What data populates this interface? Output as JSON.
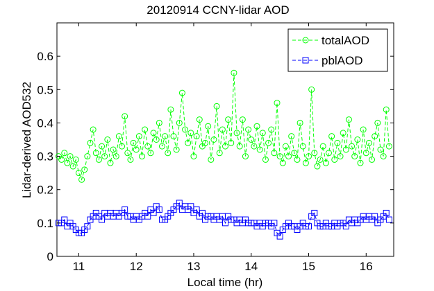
{
  "chart_data": {
    "type": "line",
    "title": "20120914 CCNY-lidar AOD",
    "xlabel": "Local time (hr)",
    "ylabel": "Lidar-derived AOD532",
    "xlim": [
      10.62,
      16.48
    ],
    "ylim": [
      0,
      0.7
    ],
    "xticks": [
      11,
      12,
      13,
      14,
      15,
      16
    ],
    "yticks": [
      0,
      0.1,
      0.2,
      0.3,
      0.4,
      0.5,
      0.6
    ],
    "xtick_labels": [
      "11",
      "12",
      "13",
      "14",
      "15",
      "16"
    ],
    "ytick_labels": [
      "0",
      "0.1",
      "0.2",
      "0.3",
      "0.4",
      "0.5",
      "0.6"
    ],
    "grid": false,
    "legend_position": "top-right",
    "series": [
      {
        "name": "totalAOD",
        "color": "#00ff00",
        "line_style": "dashed",
        "marker": "circle",
        "x": [
          10.65,
          10.7,
          10.75,
          10.8,
          10.85,
          10.9,
          10.95,
          11.0,
          11.05,
          11.1,
          11.15,
          11.2,
          11.25,
          11.3,
          11.35,
          11.4,
          11.45,
          11.5,
          11.55,
          11.6,
          11.65,
          11.7,
          11.75,
          11.8,
          11.85,
          11.9,
          11.95,
          12.0,
          12.05,
          12.1,
          12.15,
          12.2,
          12.25,
          12.3,
          12.35,
          12.4,
          12.45,
          12.5,
          12.55,
          12.6,
          12.65,
          12.7,
          12.75,
          12.8,
          12.85,
          12.9,
          12.95,
          13.0,
          13.05,
          13.1,
          13.15,
          13.2,
          13.25,
          13.3,
          13.35,
          13.4,
          13.45,
          13.5,
          13.55,
          13.6,
          13.65,
          13.7,
          13.75,
          13.8,
          13.85,
          13.9,
          13.95,
          14.0,
          14.05,
          14.1,
          14.15,
          14.2,
          14.25,
          14.3,
          14.35,
          14.4,
          14.45,
          14.5,
          14.55,
          14.6,
          14.65,
          14.7,
          14.75,
          14.8,
          14.85,
          14.9,
          14.95,
          15.0,
          15.05,
          15.1,
          15.15,
          15.2,
          15.25,
          15.3,
          15.35,
          15.4,
          15.45,
          15.5,
          15.55,
          15.6,
          15.65,
          15.7,
          15.75,
          15.8,
          15.85,
          15.9,
          15.95,
          16.0,
          16.05,
          16.1,
          16.15,
          16.2,
          16.25,
          16.3,
          16.35,
          16.4
        ],
        "values": [
          0.3,
          0.29,
          0.31,
          0.28,
          0.3,
          0.27,
          0.29,
          0.25,
          0.23,
          0.26,
          0.3,
          0.34,
          0.38,
          0.31,
          0.29,
          0.33,
          0.3,
          0.35,
          0.28,
          0.32,
          0.3,
          0.36,
          0.33,
          0.42,
          0.31,
          0.29,
          0.34,
          0.32,
          0.36,
          0.3,
          0.38,
          0.33,
          0.31,
          0.37,
          0.35,
          0.4,
          0.33,
          0.36,
          0.31,
          0.44,
          0.36,
          0.32,
          0.4,
          0.49,
          0.38,
          0.34,
          0.37,
          0.3,
          0.36,
          0.41,
          0.33,
          0.34,
          0.39,
          0.29,
          0.35,
          0.45,
          0.31,
          0.38,
          0.33,
          0.41,
          0.34,
          0.55,
          0.37,
          0.33,
          0.41,
          0.3,
          0.38,
          0.35,
          0.33,
          0.39,
          0.32,
          0.37,
          0.29,
          0.34,
          0.38,
          0.31,
          0.46,
          0.3,
          0.28,
          0.33,
          0.3,
          0.36,
          0.31,
          0.29,
          0.4,
          0.33,
          0.28,
          0.3,
          0.5,
          0.31,
          0.27,
          0.29,
          0.33,
          0.28,
          0.31,
          0.36,
          0.29,
          0.34,
          0.3,
          0.37,
          0.32,
          0.41,
          0.33,
          0.3,
          0.35,
          0.28,
          0.38,
          0.31,
          0.34,
          0.29,
          0.36,
          0.4,
          0.32,
          0.3,
          0.44,
          0.33
        ]
      },
      {
        "name": "pblAOD",
        "color": "#0000ff",
        "line_style": "dashed",
        "marker": "square",
        "x": [
          10.65,
          10.7,
          10.75,
          10.8,
          10.85,
          10.9,
          10.95,
          11.0,
          11.05,
          11.1,
          11.15,
          11.2,
          11.25,
          11.3,
          11.35,
          11.4,
          11.45,
          11.5,
          11.55,
          11.6,
          11.65,
          11.7,
          11.75,
          11.8,
          11.85,
          11.9,
          11.95,
          12.0,
          12.05,
          12.1,
          12.15,
          12.2,
          12.25,
          12.3,
          12.35,
          12.4,
          12.45,
          12.5,
          12.55,
          12.6,
          12.65,
          12.7,
          12.75,
          12.8,
          12.85,
          12.9,
          12.95,
          13.0,
          13.05,
          13.1,
          13.15,
          13.2,
          13.25,
          13.3,
          13.35,
          13.4,
          13.45,
          13.5,
          13.55,
          13.6,
          13.65,
          13.7,
          13.75,
          13.8,
          13.85,
          13.9,
          13.95,
          14.0,
          14.05,
          14.1,
          14.15,
          14.2,
          14.25,
          14.3,
          14.35,
          14.4,
          14.45,
          14.5,
          14.55,
          14.6,
          14.65,
          14.7,
          14.75,
          14.8,
          14.85,
          14.9,
          14.95,
          15.0,
          15.05,
          15.1,
          15.15,
          15.2,
          15.25,
          15.3,
          15.35,
          15.4,
          15.45,
          15.5,
          15.55,
          15.6,
          15.65,
          15.7,
          15.75,
          15.8,
          15.85,
          15.9,
          15.95,
          16.0,
          16.05,
          16.1,
          16.15,
          16.2,
          16.25,
          16.3,
          16.35,
          16.4
        ],
        "values": [
          0.1,
          0.1,
          0.11,
          0.09,
          0.1,
          0.09,
          0.08,
          0.07,
          0.07,
          0.08,
          0.09,
          0.11,
          0.12,
          0.13,
          0.12,
          0.11,
          0.13,
          0.12,
          0.13,
          0.12,
          0.13,
          0.12,
          0.13,
          0.14,
          0.12,
          0.12,
          0.11,
          0.12,
          0.11,
          0.12,
          0.13,
          0.12,
          0.14,
          0.13,
          0.15,
          0.14,
          0.11,
          0.11,
          0.12,
          0.13,
          0.14,
          0.15,
          0.16,
          0.14,
          0.15,
          0.14,
          0.15,
          0.13,
          0.14,
          0.12,
          0.13,
          0.11,
          0.12,
          0.12,
          0.11,
          0.12,
          0.11,
          0.12,
          0.1,
          0.12,
          0.11,
          0.11,
          0.1,
          0.11,
          0.1,
          0.11,
          0.1,
          0.1,
          0.1,
          0.09,
          0.1,
          0.09,
          0.1,
          0.1,
          0.09,
          0.1,
          0.07,
          0.06,
          0.08,
          0.09,
          0.1,
          0.09,
          0.09,
          0.08,
          0.09,
          0.1,
          0.09,
          0.09,
          0.12,
          0.13,
          0.1,
          0.09,
          0.09,
          0.1,
          0.09,
          0.09,
          0.1,
          0.09,
          0.1,
          0.1,
          0.09,
          0.11,
          0.1,
          0.11,
          0.1,
          0.11,
          0.12,
          0.11,
          0.12,
          0.11,
          0.12,
          0.1,
          0.11,
          0.12,
          0.13,
          0.11
        ]
      }
    ]
  },
  "colors": {
    "total": "#00ff00",
    "pbl": "#0000ff",
    "axes": "#000000",
    "background": "#ffffff"
  }
}
